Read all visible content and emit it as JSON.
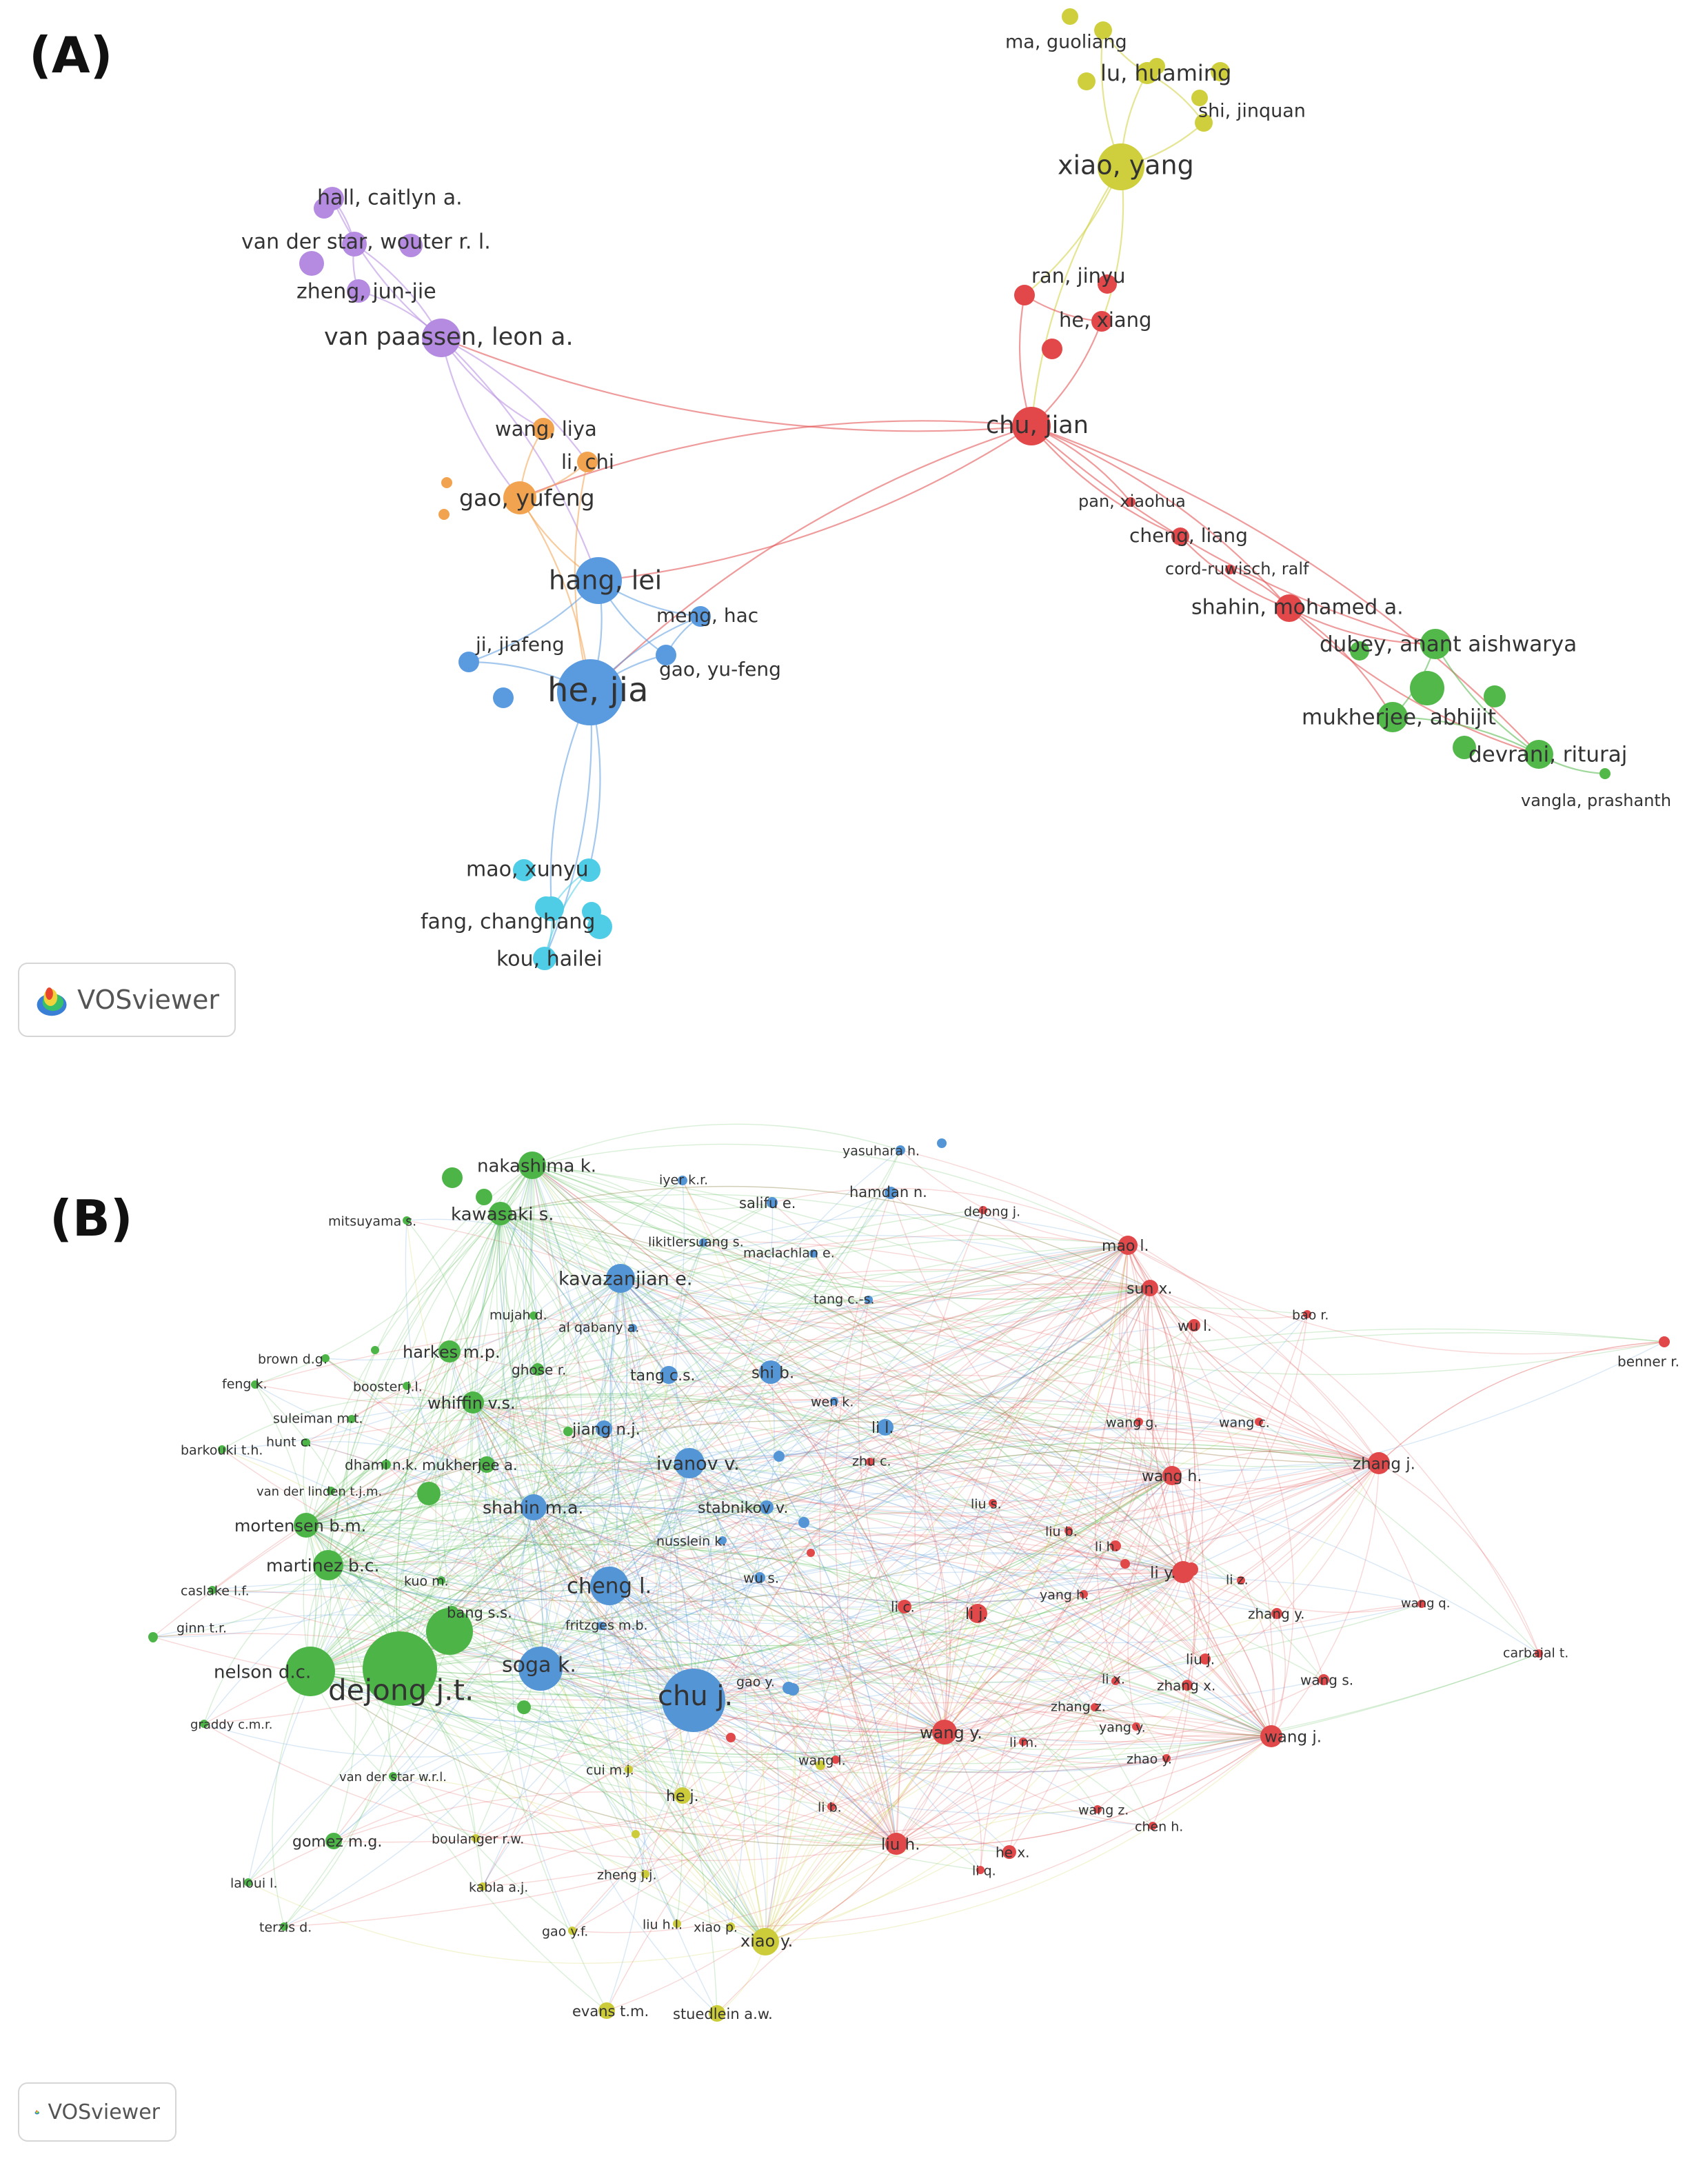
{
  "panel_a": {
    "label": "(A)",
    "badge": "VOSviewer",
    "clusters": {
      "purple": "#b48be0",
      "orange": "#f2a34f",
      "blue": "#5a9be0",
      "yellow": "#cfcf3d",
      "red": "#e2484a",
      "green": "#52b84a",
      "cyan": "#4fcde6"
    },
    "nodes": [
      {
        "id": "ma_guoliang",
        "label": "ma, guoliang",
        "cluster": "yellow"
      },
      {
        "id": "lu_huaming",
        "label": "lu, huaming",
        "cluster": "yellow"
      },
      {
        "id": "shi_jinquan",
        "label": "shi, jinquan",
        "cluster": "yellow"
      },
      {
        "id": "xiao_yang",
        "label": "xiao, yang",
        "cluster": "yellow"
      },
      {
        "id": "hall_caitlyn",
        "label": "hall, caitlyn a.",
        "cluster": "purple"
      },
      {
        "id": "vds_wouter",
        "label": "van der star, wouter r. l.",
        "cluster": "purple"
      },
      {
        "id": "zheng_junjie",
        "label": "zheng, jun-jie",
        "cluster": "purple"
      },
      {
        "id": "van_paassen",
        "label": "van paassen, leon a.",
        "cluster": "purple"
      },
      {
        "id": "ran_jinyu",
        "label": "ran, jinyu",
        "cluster": "red"
      },
      {
        "id": "he_xiang",
        "label": "he, xiang",
        "cluster": "red"
      },
      {
        "id": "chu_jian",
        "label": "chu, jian",
        "cluster": "red"
      },
      {
        "id": "wang_liya",
        "label": "wang, liya",
        "cluster": "orange"
      },
      {
        "id": "li_chi",
        "label": "li, chi",
        "cluster": "orange"
      },
      {
        "id": "gao_yufeng",
        "label": "gao, yufeng",
        "cluster": "orange"
      },
      {
        "id": "pan_xiaohua",
        "label": "pan, xiaohua",
        "cluster": "red"
      },
      {
        "id": "cheng_liang",
        "label": "cheng, liang",
        "cluster": "red"
      },
      {
        "id": "cord_ruwisch",
        "label": "cord-ruwisch, ralf",
        "cluster": "red"
      },
      {
        "id": "shahin_mohamed",
        "label": "shahin, mohamed a.",
        "cluster": "red"
      },
      {
        "id": "hang_lei",
        "label": "hang, lei",
        "cluster": "blue"
      },
      {
        "id": "meng_hao",
        "label": "meng, hac",
        "cluster": "blue"
      },
      {
        "id": "ji_jiafeng",
        "label": "ji, jiafeng",
        "cluster": "blue"
      },
      {
        "id": "gao_yufeng_b",
        "label": "gao, yu-feng",
        "cluster": "blue"
      },
      {
        "id": "he_jia",
        "label": "he, jia",
        "cluster": "blue"
      },
      {
        "id": "dubey",
        "label": "dubey, anant aishwarya",
        "cluster": "green"
      },
      {
        "id": "mukherjee_abhijit",
        "label": "mukherjee, abhijit",
        "cluster": "green"
      },
      {
        "id": "devrani",
        "label": "devrani, rituraj",
        "cluster": "green"
      },
      {
        "id": "vangla",
        "label": "vangla, prashanth",
        "cluster": "green"
      },
      {
        "id": "mao_xunyu",
        "label": "mao, xunyu",
        "cluster": "cyan"
      },
      {
        "id": "fang_changhang",
        "label": "fang, changhang",
        "cluster": "cyan"
      },
      {
        "id": "kou_hailei",
        "label": "kou, hailei",
        "cluster": "cyan"
      }
    ]
  },
  "panel_b": {
    "label": "(B)",
    "badge": "VOSviewer",
    "clusters": {
      "green": "#4db548",
      "blue": "#5495d6",
      "red": "#e0484a",
      "yellow": "#cccc3a"
    },
    "nodes": [
      {
        "id": "yasuhara",
        "label": "yasuhara h.",
        "cluster": "blue"
      },
      {
        "id": "nakashima",
        "label": "nakashima k.",
        "cluster": "green"
      },
      {
        "id": "iyer",
        "label": "iyer k.r.",
        "cluster": "blue"
      },
      {
        "id": "hamdan",
        "label": "hamdan n.",
        "cluster": "blue"
      },
      {
        "id": "salifu",
        "label": "salifu e.",
        "cluster": "blue"
      },
      {
        "id": "dejong_j",
        "label": "dejong j.",
        "cluster": "red"
      },
      {
        "id": "mitsuyama",
        "label": "mitsuyama s.",
        "cluster": "green"
      },
      {
        "id": "kawasaki",
        "label": "kawasaki s.",
        "cluster": "green"
      },
      {
        "id": "likitlersuang",
        "label": "likitlersuang s.",
        "cluster": "blue"
      },
      {
        "id": "maclachlan",
        "label": "maclachlan e.",
        "cluster": "blue"
      },
      {
        "id": "mao_l",
        "label": "mao l.",
        "cluster": "red"
      },
      {
        "id": "kavazanjian",
        "label": "kavazanjian e.",
        "cluster": "blue"
      },
      {
        "id": "sun_x",
        "label": "sun x.",
        "cluster": "red"
      },
      {
        "id": "tang_cs2",
        "label": "tang c.-s.",
        "cluster": "blue"
      },
      {
        "id": "mujah",
        "label": "mujah d.",
        "cluster": "green"
      },
      {
        "id": "bao_r",
        "label": "bao r.",
        "cluster": "red"
      },
      {
        "id": "al_qabany",
        "label": "al qabany a.",
        "cluster": "blue"
      },
      {
        "id": "wu_l",
        "label": "wu l.",
        "cluster": "red"
      },
      {
        "id": "brown",
        "label": "brown d.g.",
        "cluster": "green"
      },
      {
        "id": "harkes",
        "label": "harkes m.p.",
        "cluster": "green"
      },
      {
        "id": "benner",
        "label": "benner r.",
        "cluster": "red"
      },
      {
        "id": "ghose",
        "label": "ghose r.",
        "cluster": "green"
      },
      {
        "id": "tang_cs",
        "label": "tang c.s.",
        "cluster": "blue"
      },
      {
        "id": "shi_b",
        "label": "shi b.",
        "cluster": "blue"
      },
      {
        "id": "feng_k",
        "label": "feng k.",
        "cluster": "green"
      },
      {
        "id": "booster",
        "label": "booster j.l.",
        "cluster": "green"
      },
      {
        "id": "whiffin",
        "label": "whiffin v.s.",
        "cluster": "green"
      },
      {
        "id": "wen_k",
        "label": "wen k.",
        "cluster": "blue"
      },
      {
        "id": "suleiman",
        "label": "suleiman m.t.",
        "cluster": "green"
      },
      {
        "id": "wang_g",
        "label": "wang g.",
        "cluster": "red"
      },
      {
        "id": "wang_c",
        "label": "wang c.",
        "cluster": "red"
      },
      {
        "id": "hunt",
        "label": "hunt c.",
        "cluster": "green"
      },
      {
        "id": "jiang",
        "label": "jiang n.j.",
        "cluster": "blue"
      },
      {
        "id": "li_l",
        "label": "li l.",
        "cluster": "blue"
      },
      {
        "id": "barkouki",
        "label": "barkouki t.h.",
        "cluster": "green"
      },
      {
        "id": "zhu_c",
        "label": "zhu c.",
        "cluster": "red"
      },
      {
        "id": "zhang_j",
        "label": "zhang j.",
        "cluster": "red"
      },
      {
        "id": "dhami",
        "label": "dhami n.k.",
        "cluster": "green"
      },
      {
        "id": "mukherjee_a",
        "label": "mukherjee a.",
        "cluster": "green"
      },
      {
        "id": "ivanov",
        "label": "ivanov v.",
        "cluster": "blue"
      },
      {
        "id": "wang_h",
        "label": "wang h.",
        "cluster": "red"
      },
      {
        "id": "van_der_linden",
        "label": "van der linden t.j.m.",
        "cluster": "green"
      },
      {
        "id": "liu_s",
        "label": "liu s.",
        "cluster": "red"
      },
      {
        "id": "shahin_ma",
        "label": "shahin m.a.",
        "cluster": "blue"
      },
      {
        "id": "stabnikov",
        "label": "stabnikov v.",
        "cluster": "blue"
      },
      {
        "id": "mortensen",
        "label": "mortensen b.m.",
        "cluster": "green"
      },
      {
        "id": "liu_b",
        "label": "liu b.",
        "cluster": "red"
      },
      {
        "id": "nusslein",
        "label": "nusslein k.",
        "cluster": "blue"
      },
      {
        "id": "li_h",
        "label": "li h.",
        "cluster": "red"
      },
      {
        "id": "martinez",
        "label": "martinez b.c.",
        "cluster": "green"
      },
      {
        "id": "wu_s",
        "label": "wu s.",
        "cluster": "blue"
      },
      {
        "id": "li_y",
        "label": "li y.",
        "cluster": "red"
      },
      {
        "id": "kuo",
        "label": "kuo m.",
        "cluster": "green"
      },
      {
        "id": "cheng_l",
        "label": "cheng l.",
        "cluster": "blue"
      },
      {
        "id": "li_z",
        "label": "li z.",
        "cluster": "red"
      },
      {
        "id": "caslake",
        "label": "caslake l.f.",
        "cluster": "green"
      },
      {
        "id": "yang_h",
        "label": "yang h.",
        "cluster": "red"
      },
      {
        "id": "li_c",
        "label": "li c.",
        "cluster": "red"
      },
      {
        "id": "li_j",
        "label": "li j.",
        "cluster": "red"
      },
      {
        "id": "wang_q",
        "label": "wang q.",
        "cluster": "red"
      },
      {
        "id": "bang",
        "label": "bang s.s.",
        "cluster": "green"
      },
      {
        "id": "fritzges",
        "label": "fritzges m.b.",
        "cluster": "blue"
      },
      {
        "id": "zhang_y",
        "label": "zhang y.",
        "cluster": "red"
      },
      {
        "id": "ginn",
        "label": "ginn t.r.",
        "cluster": "green"
      },
      {
        "id": "carbajal",
        "label": "carbajal t.",
        "cluster": "red"
      },
      {
        "id": "liu_j",
        "label": "liu j.",
        "cluster": "red"
      },
      {
        "id": "soga",
        "label": "soga k.",
        "cluster": "blue"
      },
      {
        "id": "nelson",
        "label": "nelson d.c.",
        "cluster": "green"
      },
      {
        "id": "dejong_jt",
        "label": "dejong j.t.",
        "cluster": "green"
      },
      {
        "id": "chu_j",
        "label": "chu j.",
        "cluster": "blue"
      },
      {
        "id": "gao_y",
        "label": "gao y.",
        "cluster": "blue"
      },
      {
        "id": "li_x",
        "label": "li x.",
        "cluster": "red"
      },
      {
        "id": "zhang_x",
        "label": "zhang x.",
        "cluster": "red"
      },
      {
        "id": "wang_s",
        "label": "wang s.",
        "cluster": "red"
      },
      {
        "id": "zhang_z",
        "label": "zhang z.",
        "cluster": "red"
      },
      {
        "id": "graddy",
        "label": "graddy c.m.r.",
        "cluster": "green"
      },
      {
        "id": "wang_y",
        "label": "wang y.",
        "cluster": "red"
      },
      {
        "id": "yang_y",
        "label": "yang y.",
        "cluster": "red"
      },
      {
        "id": "li_m",
        "label": "li m.",
        "cluster": "red"
      },
      {
        "id": "wang_j",
        "label": "wang j.",
        "cluster": "red"
      },
      {
        "id": "wang_l",
        "label": "wang l.",
        "cluster": "red"
      },
      {
        "id": "zhao_y",
        "label": "zhao y.",
        "cluster": "red"
      },
      {
        "id": "van_der_star_wrl",
        "label": "van der star w.r.l.",
        "cluster": "green"
      },
      {
        "id": "cui",
        "label": "cui m.j.",
        "cluster": "yellow"
      },
      {
        "id": "he_j",
        "label": "he j.",
        "cluster": "yellow"
      },
      {
        "id": "li_b",
        "label": "li b.",
        "cluster": "red"
      },
      {
        "id": "wang_z",
        "label": "wang z.",
        "cluster": "red"
      },
      {
        "id": "gomez",
        "label": "gomez m.g.",
        "cluster": "green"
      },
      {
        "id": "boulanger",
        "label": "boulanger r.w.",
        "cluster": "yellow"
      },
      {
        "id": "chen_h",
        "label": "chen h.",
        "cluster": "red"
      },
      {
        "id": "liu_h",
        "label": "liu h.",
        "cluster": "red"
      },
      {
        "id": "he_x",
        "label": "he x.",
        "cluster": "red"
      },
      {
        "id": "zheng",
        "label": "zheng j.j.",
        "cluster": "yellow"
      },
      {
        "id": "li_q",
        "label": "li q.",
        "cluster": "red"
      },
      {
        "id": "laloui",
        "label": "laloui l.",
        "cluster": "green"
      },
      {
        "id": "kabla",
        "label": "kabla a.j.",
        "cluster": "yellow"
      },
      {
        "id": "terzis",
        "label": "terzis d.",
        "cluster": "green"
      },
      {
        "id": "liu_hl",
        "label": "liu h.l.",
        "cluster": "yellow"
      },
      {
        "id": "xiao_p",
        "label": "xiao p.",
        "cluster": "yellow"
      },
      {
        "id": "gao_yf",
        "label": "gao y.f.",
        "cluster": "yellow"
      },
      {
        "id": "xiao_y",
        "label": "xiao y.",
        "cluster": "yellow"
      },
      {
        "id": "evans",
        "label": "evans t.m.",
        "cluster": "yellow"
      },
      {
        "id": "stuedlein",
        "label": "stuedlein a.w.",
        "cluster": "yellow"
      }
    ]
  }
}
